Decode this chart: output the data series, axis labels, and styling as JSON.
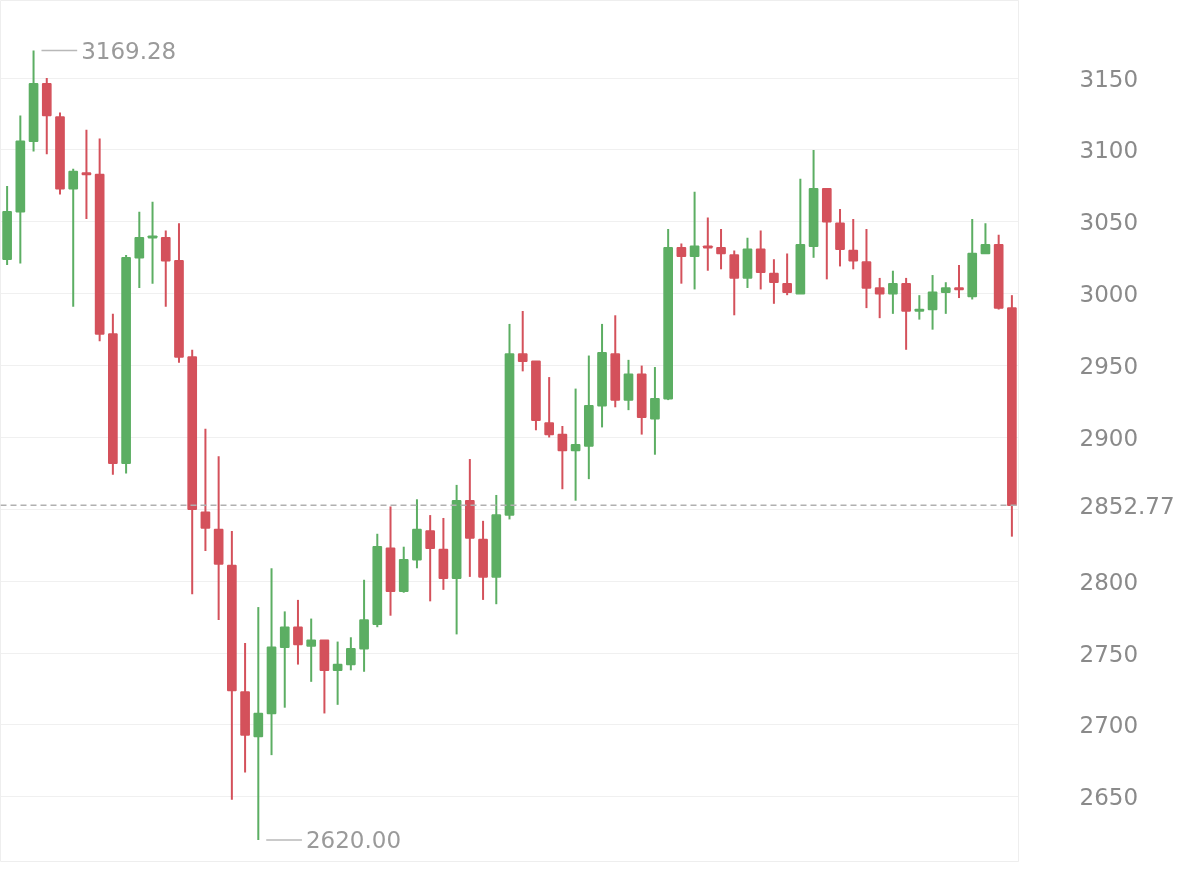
{
  "chart_data": {
    "type": "candlestick",
    "categories": [
      null,
      null,
      null,
      null,
      null,
      null,
      null,
      null,
      null,
      null,
      null,
      null,
      null,
      null,
      null,
      null,
      null,
      null,
      null,
      null,
      null,
      null,
      null,
      null,
      null,
      null,
      null,
      null,
      null,
      null,
      null,
      null,
      null,
      null,
      null,
      null,
      null,
      null,
      null,
      null,
      null,
      null,
      null,
      null,
      null,
      null,
      null,
      null,
      null,
      null,
      null,
      null,
      null,
      null,
      null,
      null,
      null,
      null,
      null,
      null,
      null,
      null,
      null,
      null,
      null,
      null,
      null,
      null,
      null,
      null,
      null,
      null,
      null,
      null,
      null,
      null,
      null
    ],
    "ohlc": [
      [
        3024,
        3075,
        3020,
        3057
      ],
      [
        3057,
        3124,
        3021,
        3106
      ],
      [
        3106,
        3169.28,
        3099,
        3146
      ],
      [
        3146,
        3150,
        3097,
        3124
      ],
      [
        3123,
        3126,
        3069,
        3073
      ],
      [
        3073,
        3087,
        2991,
        3085
      ],
      [
        3084,
        3114,
        3052,
        3083
      ],
      [
        3083,
        3108,
        2967,
        2972
      ],
      [
        2972,
        2986,
        2874,
        2882
      ],
      [
        2882,
        3027,
        2875,
        3025
      ],
      [
        3025,
        3057,
        3004,
        3039
      ],
      [
        3039,
        3064,
        3007,
        3040
      ],
      [
        3039,
        3044,
        2991,
        3023
      ],
      [
        3023,
        3049,
        2952,
        2956
      ],
      [
        2956,
        2961,
        2791,
        2850
      ],
      [
        2848,
        2906,
        2821,
        2837
      ],
      [
        2836,
        2887,
        2773,
        2812
      ],
      [
        2811,
        2835,
        2648,
        2724
      ],
      [
        2723,
        2757,
        2667,
        2693
      ],
      [
        2692,
        2782,
        2620,
        2708
      ],
      [
        2708,
        2809,
        2679,
        2754
      ],
      [
        2754,
        2779,
        2712,
        2768
      ],
      [
        2768,
        2787,
        2742,
        2756
      ],
      [
        2755,
        2774,
        2730,
        2759
      ],
      [
        2759,
        2759,
        2708,
        2738
      ],
      [
        2738,
        2758,
        2714,
        2742
      ],
      [
        2742,
        2761,
        2738,
        2753
      ],
      [
        2753,
        2801,
        2737,
        2773
      ],
      [
        2770,
        2833,
        2768,
        2824
      ],
      [
        2823,
        2852,
        2776,
        2793
      ],
      [
        2793,
        2824,
        2792,
        2815
      ],
      [
        2815,
        2857,
        2809,
        2836
      ],
      [
        2835,
        2846,
        2786,
        2823
      ],
      [
        2822,
        2844,
        2794,
        2802
      ],
      [
        2802,
        2867,
        2763,
        2856
      ],
      [
        2856,
        2885,
        2803,
        2830
      ],
      [
        2829,
        2842,
        2787,
        2803
      ],
      [
        2803,
        2860,
        2784,
        2846
      ],
      [
        2846,
        2979,
        2843,
        2958
      ],
      [
        2958,
        2988,
        2946,
        2953
      ],
      [
        2953,
        2953,
        2905,
        2912
      ],
      [
        2910,
        2942,
        2900,
        2902
      ],
      [
        2902,
        2908,
        2864,
        2891
      ],
      [
        2891,
        2934,
        2856,
        2895
      ],
      [
        2894,
        2957,
        2871,
        2922
      ],
      [
        2922,
        2979,
        2907,
        2959
      ],
      [
        2958,
        2985,
        2921,
        2926
      ],
      [
        2926,
        2954,
        2919,
        2944
      ],
      [
        2944,
        2950,
        2902,
        2914
      ],
      [
        2913,
        2949,
        2888,
        2927
      ],
      [
        2927,
        3045,
        2926,
        3032
      ],
      [
        3032,
        3035,
        3007,
        3026
      ],
      [
        3026,
        3071,
        3003,
        3033
      ],
      [
        3033,
        3053,
        3016,
        3032
      ],
      [
        3032,
        3045,
        3017,
        3028
      ],
      [
        3027,
        3030,
        2985,
        3011
      ],
      [
        3011,
        3039,
        3004,
        3031
      ],
      [
        3031,
        3044,
        3003,
        3015
      ],
      [
        3014,
        3024,
        2993,
        3008
      ],
      [
        3007,
        3028,
        2999,
        3001
      ],
      [
        3000,
        3080,
        3000,
        3034
      ],
      [
        3033,
        3100,
        3025,
        3073
      ],
      [
        3073,
        3073,
        3010,
        3050
      ],
      [
        3049,
        3059,
        3019,
        3031
      ],
      [
        3030,
        3052,
        3017,
        3023
      ],
      [
        3022,
        3045,
        2990,
        3004
      ],
      [
        3004,
        3011,
        2983,
        3000
      ],
      [
        3000,
        3016,
        2986,
        3007
      ],
      [
        3007,
        3011,
        2961,
        2988
      ],
      [
        2988,
        2999,
        2982,
        2989
      ],
      [
        2989,
        3013,
        2975,
        3001
      ],
      [
        3001,
        3008,
        2986,
        3004
      ],
      [
        3004,
        3020,
        2997,
        3003
      ],
      [
        2998,
        3052,
        2996,
        3028
      ],
      [
        3028,
        3049,
        3028,
        3034
      ],
      [
        3034,
        3041,
        2989,
        2990
      ],
      [
        2990,
        2999,
        2831,
        2852.77
      ]
    ],
    "colors": [
      "#5cae63",
      "#5cae63",
      "#5cae63",
      "#d4515b",
      "#d4515b",
      "#5cae63",
      "#d4515b",
      "#d4515b",
      "#d4515b",
      "#5cae63",
      "#5cae63",
      "#5cae63",
      "#d4515b",
      "#d4515b",
      "#d4515b",
      "#d4515b",
      "#d4515b",
      "#d4515b",
      "#d4515b",
      "#5cae63",
      "#5cae63",
      "#5cae63",
      "#d4515b",
      "#5cae63",
      "#d4515b",
      "#5cae63",
      "#5cae63",
      "#5cae63",
      "#5cae63",
      "#d4515b",
      "#5cae63",
      "#5cae63",
      "#d4515b",
      "#d4515b",
      "#5cae63",
      "#d4515b",
      "#d4515b",
      "#5cae63",
      "#5cae63",
      "#d4515b",
      "#d4515b",
      "#d4515b",
      "#d4515b",
      "#5cae63",
      "#5cae63",
      "#5cae63",
      "#d4515b",
      "#5cae63",
      "#d4515b",
      "#5cae63",
      "#5cae63",
      "#d4515b",
      "#5cae63",
      "#d4515b",
      "#d4515b",
      "#d4515b",
      "#5cae63",
      "#d4515b",
      "#d4515b",
      "#d4515b",
      "#5cae63",
      "#5cae63",
      "#d4515b",
      "#d4515b",
      "#d4515b",
      "#d4515b",
      "#d4515b",
      "#5cae63",
      "#d4515b",
      "#5cae63",
      "#5cae63",
      "#5cae63",
      "#d4515b",
      "#5cae63",
      "#5cae63",
      "#d4515b",
      "#d4515b"
    ],
    "ylim": [
      2605,
      3204
    ],
    "yticks": [
      2650,
      2700,
      2750,
      2800,
      {
        "value": 2850,
        "label": null
      },
      2900,
      2950,
      3000,
      3050,
      3100,
      3150
    ],
    "ref_lines": [
      {
        "axis": "y",
        "value": 2852.77,
        "label": "2852.77",
        "color": "#b0b0b0",
        "line_style": "dashed"
      }
    ],
    "annotations": [
      "3169.28",
      "2620.00"
    ],
    "grid": "y",
    "tick_labels": "y"
  }
}
